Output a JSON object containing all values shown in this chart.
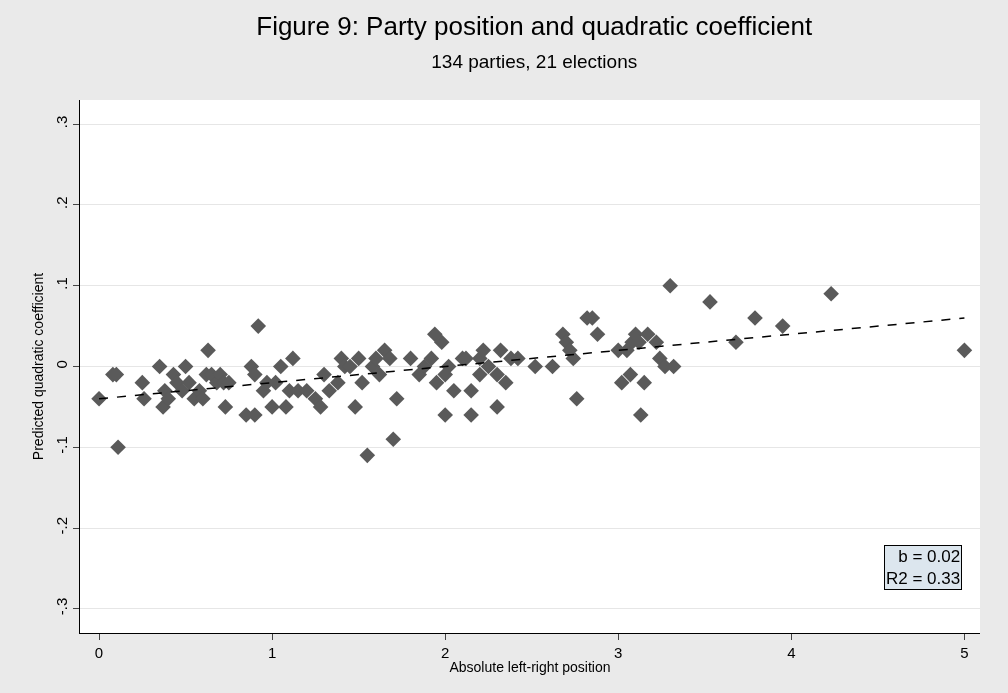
{
  "chart_data": {
    "type": "scatter",
    "title": "Figure 9: Party position and quadratic coefficient",
    "subtitle": "134 parties, 21 elections",
    "xlabel": "Absolute left-right position",
    "ylabel": "Predicted quadratic coefficient",
    "xlim": [
      -0.11,
      5.09
    ],
    "xticks": [
      0,
      1,
      2,
      3,
      4,
      5
    ],
    "ylim": [
      -0.33,
      0.33
    ],
    "yticks": [
      {
        "value": -0.3,
        "label": "-.3"
      },
      {
        "value": -0.2,
        "label": "-.2"
      },
      {
        "value": -0.1,
        "label": "-.1"
      },
      0,
      {
        "value": 0.1,
        "label": ".1"
      },
      {
        "value": 0.2,
        "label": ".2"
      },
      {
        "value": 0.3,
        "label": ".3"
      }
    ],
    "grid": "y",
    "annotations": [
      "b = 0.02",
      "R2 = 0.33"
    ],
    "series": [
      {
        "marker": "diamond",
        "color": "#5a5a5a",
        "x": [
          0.0,
          0.08,
          0.1,
          0.11,
          0.25,
          0.26,
          0.35,
          0.37,
          0.38,
          0.4,
          0.43,
          0.45,
          0.48,
          0.5,
          0.52,
          0.55,
          0.58,
          0.6,
          0.62,
          0.63,
          0.65,
          0.68,
          0.7,
          0.72,
          0.73,
          0.75,
          0.85,
          0.88,
          0.9,
          0.9,
          0.92,
          0.95,
          0.97,
          1.0,
          1.02,
          1.05,
          1.08,
          1.1,
          1.12,
          1.15,
          1.2,
          1.25,
          1.28,
          1.3,
          1.33,
          1.38,
          1.4,
          1.42,
          1.45,
          1.48,
          1.5,
          1.52,
          1.55,
          1.58,
          1.6,
          1.62,
          1.65,
          1.68,
          1.7,
          1.72,
          1.8,
          1.85,
          1.88,
          1.92,
          1.94,
          1.95,
          1.98,
          2.0,
          2.0,
          2.02,
          2.05,
          2.1,
          2.12,
          2.15,
          2.15,
          2.2,
          2.2,
          2.22,
          2.25,
          2.3,
          2.3,
          2.32,
          2.35,
          2.38,
          2.42,
          2.52,
          2.62,
          2.68,
          2.7,
          2.72,
          2.74,
          2.76,
          2.82,
          2.85,
          2.88,
          3.0,
          3.02,
          3.05,
          3.07,
          3.08,
          3.1,
          3.12,
          3.13,
          3.15,
          3.17,
          3.22,
          3.24,
          3.27,
          3.3,
          3.32,
          3.53,
          3.68,
          3.79,
          3.95,
          4.23,
          5.0
        ],
        "values": [
          -0.04,
          -0.01,
          -0.01,
          -0.1,
          -0.02,
          -0.04,
          0.0,
          -0.05,
          -0.03,
          -0.04,
          -0.01,
          -0.02,
          -0.03,
          0.0,
          -0.02,
          -0.04,
          -0.03,
          -0.04,
          -0.01,
          0.02,
          -0.01,
          -0.02,
          -0.01,
          -0.02,
          -0.05,
          -0.02,
          -0.06,
          0.0,
          -0.06,
          -0.01,
          0.05,
          -0.03,
          -0.02,
          -0.05,
          -0.02,
          0.0,
          -0.05,
          -0.03,
          0.01,
          -0.03,
          -0.03,
          -0.04,
          -0.05,
          -0.01,
          -0.03,
          -0.02,
          0.01,
          0.0,
          0.0,
          -0.05,
          0.01,
          -0.02,
          -0.11,
          0.0,
          0.01,
          -0.01,
          0.02,
          0.01,
          -0.09,
          -0.04,
          0.01,
          -0.01,
          0.0,
          0.01,
          0.04,
          -0.02,
          0.03,
          -0.01,
          -0.06,
          0.0,
          -0.03,
          0.01,
          0.01,
          -0.06,
          -0.03,
          0.01,
          -0.01,
          0.02,
          0.0,
          -0.05,
          -0.01,
          0.02,
          -0.02,
          0.01,
          0.01,
          0.0,
          0.0,
          0.04,
          0.03,
          0.02,
          0.01,
          -0.04,
          0.06,
          0.06,
          0.04,
          0.02,
          -0.02,
          0.02,
          -0.01,
          0.03,
          0.04,
          0.03,
          -0.06,
          -0.02,
          0.04,
          0.03,
          0.01,
          0.0,
          0.1,
          0.0,
          0.08,
          0.03,
          0.06,
          0.05,
          0.09,
          0.02
        ]
      },
      {
        "type": "line",
        "line_style": "dashed",
        "marker": "none",
        "color": "#000000",
        "x": [
          0,
          5
        ],
        "values": [
          -0.04,
          0.06
        ]
      }
    ]
  }
}
